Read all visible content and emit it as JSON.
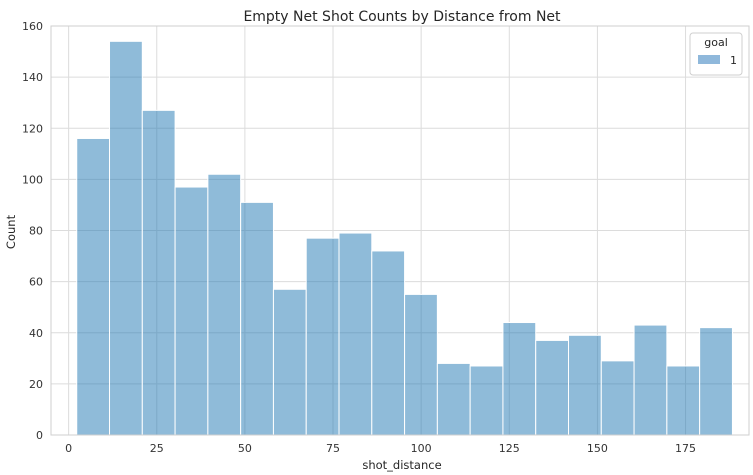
{
  "chart_data": {
    "type": "bar",
    "title": "Empty Net Shot Counts by Distance from Net",
    "xlabel": "shot_distance",
    "ylabel": "Count",
    "xlim": [
      -5,
      193
    ],
    "ylim": [
      0,
      160
    ],
    "xticks": [
      0,
      25,
      50,
      75,
      100,
      125,
      150,
      175
    ],
    "yticks": [
      0,
      20,
      40,
      60,
      80,
      100,
      120,
      140,
      160
    ],
    "bin_edges": [
      2.3,
      11.6,
      20.9,
      30.2,
      39.5,
      48.8,
      58.1,
      67.4,
      76.7,
      86.0,
      95.3,
      104.6,
      113.9,
      123.2,
      132.5,
      141.8,
      151.1,
      160.4,
      169.7,
      179.0,
      188.3
    ],
    "values": [
      116,
      154,
      127,
      97,
      102,
      91,
      57,
      77,
      79,
      72,
      55,
      28,
      27,
      44,
      37,
      39,
      29,
      43,
      27,
      42
    ],
    "legend": {
      "title": "goal",
      "entries": [
        {
          "label": "1",
          "color": "#8fb8db"
        }
      ],
      "placement": "top-right"
    },
    "grid": true,
    "bar_color": "#1f77b4"
  }
}
